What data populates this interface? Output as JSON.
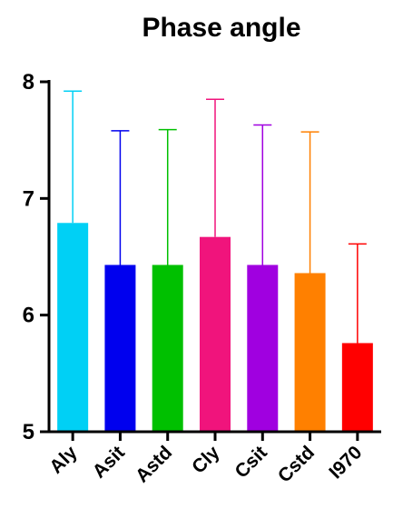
{
  "chart_data": {
    "type": "bar",
    "title": "Phase angle",
    "xlabel": "",
    "ylabel": "",
    "ylim": [
      5,
      8
    ],
    "yticks": [
      5,
      6,
      7,
      8
    ],
    "categories": [
      "Aly",
      "Asit",
      "Astd",
      "Cly",
      "Csit",
      "Cstd",
      "I970"
    ],
    "values": [
      6.79,
      6.43,
      6.43,
      6.67,
      6.43,
      6.36,
      5.76
    ],
    "error_upper": [
      7.92,
      7.58,
      7.59,
      7.85,
      7.63,
      7.57,
      6.61
    ],
    "colors": [
      "#00d0f5",
      "#0000ee",
      "#00c000",
      "#f0147c",
      "#a000e0",
      "#ff8000",
      "#ff0000"
    ],
    "grid": false,
    "legend": "none"
  }
}
